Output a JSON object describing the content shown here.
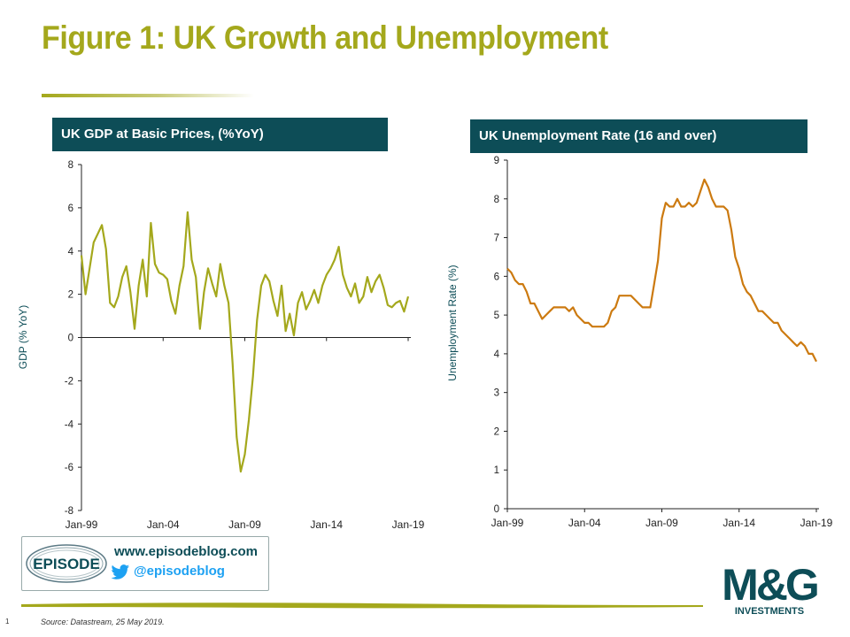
{
  "page": {
    "title": "Figure 1: UK Growth and Unemployment",
    "page_number": "1",
    "source": "Source: Datastream, 25 May 2019.",
    "brand": {
      "logo_text": "EPISODE",
      "url": "www.episodeblog.com",
      "handle": "@episodeblog",
      "icon": "twitter-bird-icon"
    },
    "company_logo": {
      "line1": "M&G",
      "line2": "INVESTMENTS"
    },
    "colors": {
      "title": "#a4a81c",
      "header_bg": "#0d4d57",
      "gdp_line": "#a4a81c",
      "unemp_line": "#cc7a10",
      "twitter": "#1da1f2"
    }
  },
  "chart_data": [
    {
      "type": "line",
      "title": "UK GDP at Basic Prices, (%YoY)",
      "xlabel": "",
      "ylabel": "GDP (% YoY)",
      "x_tick_labels": [
        "Jan-99",
        "Jan-04",
        "Jan-09",
        "Jan-14",
        "Jan-19"
      ],
      "xlim": [
        1999.0,
        2019.0
      ],
      "ylim": [
        -8,
        8
      ],
      "y_ticks": [
        8,
        6,
        4,
        2,
        0,
        -2,
        -4,
        -6,
        -8
      ],
      "grid": false,
      "series": [
        {
          "name": "",
          "x": [
            1999.0,
            1999.25,
            1999.5,
            1999.75,
            2000.0,
            2000.25,
            2000.5,
            2000.75,
            2001.0,
            2001.25,
            2001.5,
            2001.75,
            2002.0,
            2002.25,
            2002.5,
            2002.75,
            2003.0,
            2003.25,
            2003.5,
            2003.75,
            2004.0,
            2004.25,
            2004.5,
            2004.75,
            2005.0,
            2005.25,
            2005.5,
            2005.75,
            2006.0,
            2006.25,
            2006.5,
            2006.75,
            2007.0,
            2007.25,
            2007.5,
            2007.75,
            2008.0,
            2008.25,
            2008.5,
            2008.75,
            2009.0,
            2009.25,
            2009.5,
            2009.75,
            2010.0,
            2010.25,
            2010.5,
            2010.75,
            2011.0,
            2011.25,
            2011.5,
            2011.75,
            2012.0,
            2012.25,
            2012.5,
            2012.75,
            2013.0,
            2013.25,
            2013.5,
            2013.75,
            2014.0,
            2014.25,
            2014.5,
            2014.75,
            2015.0,
            2015.25,
            2015.5,
            2015.75,
            2016.0,
            2016.25,
            2016.5,
            2016.75,
            2017.0,
            2017.25,
            2017.5,
            2017.75,
            2018.0,
            2018.25,
            2018.5,
            2018.75,
            2019.0
          ],
          "values": [
            3.8,
            2.0,
            3.2,
            4.4,
            4.8,
            5.2,
            4.1,
            1.6,
            1.4,
            1.9,
            2.8,
            3.3,
            2.1,
            0.4,
            2.4,
            3.6,
            1.9,
            5.3,
            3.4,
            3.0,
            2.9,
            2.7,
            1.7,
            1.1,
            2.4,
            3.3,
            5.8,
            3.6,
            2.8,
            0.4,
            2.1,
            3.2,
            2.5,
            1.9,
            3.4,
            2.4,
            1.6,
            -1.2,
            -4.6,
            -6.2,
            -5.4,
            -3.8,
            -1.8,
            0.8,
            2.4,
            2.9,
            2.6,
            1.7,
            1.0,
            2.4,
            0.3,
            1.1,
            0.1,
            1.6,
            2.1,
            1.3,
            1.7,
            2.2,
            1.6,
            2.4,
            2.9,
            3.2,
            3.6,
            4.2,
            2.9,
            2.3,
            1.9,
            2.5,
            1.6,
            1.9,
            2.8,
            2.1,
            2.6,
            2.9,
            2.3,
            1.5,
            1.4,
            1.6,
            1.7,
            1.2,
            1.9
          ]
        }
      ]
    },
    {
      "type": "line",
      "title": "UK Unemployment Rate (16 and over)",
      "xlabel": "",
      "ylabel": "Unemployment Rate (%)",
      "x_tick_labels": [
        "Jan-99",
        "Jan-04",
        "Jan-09",
        "Jan-14",
        "Jan-19"
      ],
      "xlim": [
        1999.0,
        2019.0
      ],
      "ylim": [
        0,
        9
      ],
      "y_ticks": [
        9,
        8,
        7,
        6,
        5,
        4,
        3,
        2,
        1,
        0
      ],
      "grid": false,
      "series": [
        {
          "name": "",
          "x": [
            1999.0,
            1999.25,
            1999.5,
            1999.75,
            2000.0,
            2000.25,
            2000.5,
            2000.75,
            2001.0,
            2001.25,
            2001.5,
            2001.75,
            2002.0,
            2002.25,
            2002.5,
            2002.75,
            2003.0,
            2003.25,
            2003.5,
            2003.75,
            2004.0,
            2004.25,
            2004.5,
            2004.75,
            2005.0,
            2005.25,
            2005.5,
            2005.75,
            2006.0,
            2006.25,
            2006.5,
            2006.75,
            2007.0,
            2007.25,
            2007.5,
            2007.75,
            2008.0,
            2008.25,
            2008.5,
            2008.75,
            2009.0,
            2009.25,
            2009.5,
            2009.75,
            2010.0,
            2010.25,
            2010.5,
            2010.75,
            2011.0,
            2011.25,
            2011.5,
            2011.75,
            2012.0,
            2012.25,
            2012.5,
            2012.75,
            2013.0,
            2013.25,
            2013.5,
            2013.75,
            2014.0,
            2014.25,
            2014.5,
            2014.75,
            2015.0,
            2015.25,
            2015.5,
            2015.75,
            2016.0,
            2016.25,
            2016.5,
            2016.75,
            2017.0,
            2017.25,
            2017.5,
            2017.75,
            2018.0,
            2018.25,
            2018.5,
            2018.75,
            2019.0
          ],
          "values": [
            6.2,
            6.1,
            5.9,
            5.8,
            5.8,
            5.6,
            5.3,
            5.3,
            5.1,
            4.9,
            5.0,
            5.1,
            5.2,
            5.2,
            5.2,
            5.2,
            5.1,
            5.2,
            5.0,
            4.9,
            4.8,
            4.8,
            4.7,
            4.7,
            4.7,
            4.7,
            4.8,
            5.1,
            5.2,
            5.5,
            5.5,
            5.5,
            5.5,
            5.4,
            5.3,
            5.2,
            5.2,
            5.2,
            5.8,
            6.4,
            7.5,
            7.9,
            7.8,
            7.8,
            8.0,
            7.8,
            7.8,
            7.9,
            7.8,
            7.9,
            8.2,
            8.5,
            8.3,
            8.0,
            7.8,
            7.8,
            7.8,
            7.7,
            7.2,
            6.5,
            6.2,
            5.8,
            5.6,
            5.5,
            5.3,
            5.1,
            5.1,
            5.0,
            4.9,
            4.8,
            4.8,
            4.6,
            4.5,
            4.4,
            4.3,
            4.2,
            4.3,
            4.2,
            4.0,
            4.0,
            3.8
          ]
        }
      ]
    }
  ]
}
